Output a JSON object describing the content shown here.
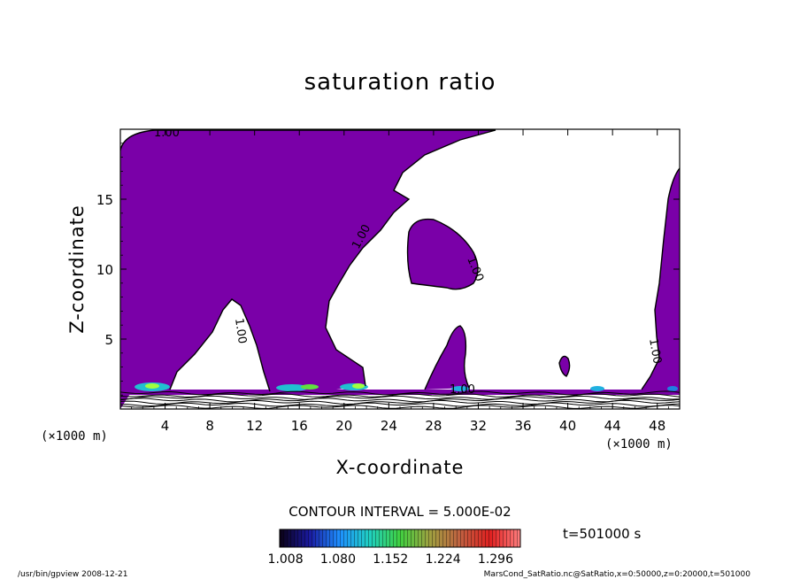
{
  "chart_data": {
    "type": "contour",
    "title": "saturation ratio",
    "xlabel": "X-coordinate",
    "ylabel": "Z-coordinate",
    "x_unit": "(×1000 m)",
    "z_unit": "(×1000 m)",
    "xlim": [
      0,
      50
    ],
    "ylim": [
      0,
      20
    ],
    "x_ticks": [
      4,
      8,
      12,
      16,
      20,
      24,
      28,
      32,
      36,
      40,
      44,
      48
    ],
    "y_ticks": [
      5,
      10,
      15
    ],
    "contour_interval": "CONTOUR INTERVAL = 5.000E-02",
    "time_label": "t=501000 s",
    "contour_labels": [
      "1.00",
      "1.00",
      "1.00",
      "1.00",
      "1.00",
      "1.00"
    ],
    "colorbar": {
      "range": [
        1.0,
        1.33
      ],
      "ticks": [
        "1.008",
        "1.080",
        "1.152",
        "1.224",
        "1.296"
      ],
      "colormap": [
        "#0a0014",
        "#1a1aa0",
        "#1e90ff",
        "#20d0c0",
        "#40d040",
        "#a0a040",
        "#c06040",
        "#e02020",
        "#ff8080"
      ]
    },
    "fill_color": "#7a00a8",
    "footer_left": "/usr/bin/gpview   2008-12-21",
    "footer_right": "MarsCond_SatRatio.nc@SatRatio,x=0:50000,z=0:20000,t=501000"
  }
}
